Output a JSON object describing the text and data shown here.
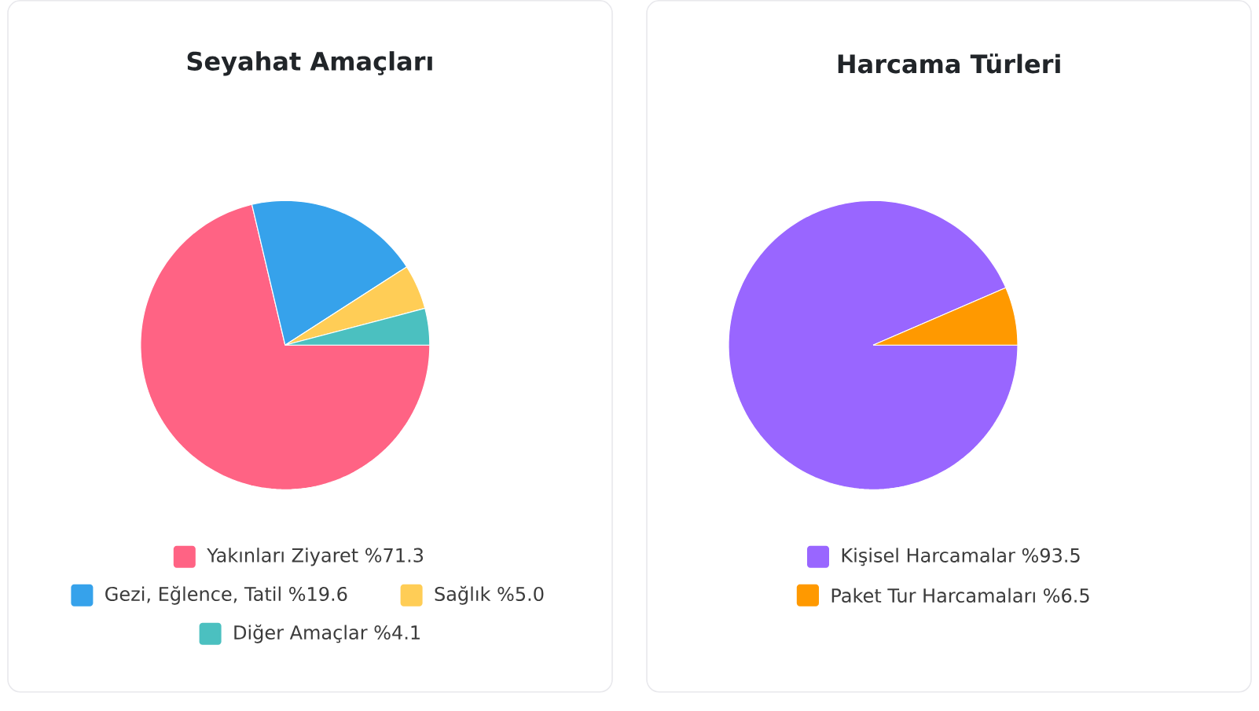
{
  "chart_data": [
    {
      "type": "pie",
      "title": "Seyahat Amaçları",
      "categories": [
        "Yakınları Ziyaret",
        "Gezi, Eğlence, Tatil",
        "Sağlık",
        "Diğer Amaçlar"
      ],
      "values": [
        71.3,
        19.6,
        5.0,
        4.1
      ],
      "value_labels": [
        "%71.3",
        "%19.6",
        "%5.0",
        "%4.1"
      ],
      "colors": [
        "#ff6384",
        "#36a2eb",
        "#ffcd56",
        "#4bc0c0"
      ],
      "legend": "bottom"
    },
    {
      "type": "pie",
      "title": "Harcama Türleri",
      "categories": [
        "Kişisel Harcamalar",
        "Paket Tur Harcamaları"
      ],
      "values": [
        93.5,
        6.5
      ],
      "value_labels": [
        "%93.5",
        "%6.5"
      ],
      "colors": [
        "#9966ff",
        "#ff9900"
      ],
      "legend": "bottom"
    }
  ]
}
